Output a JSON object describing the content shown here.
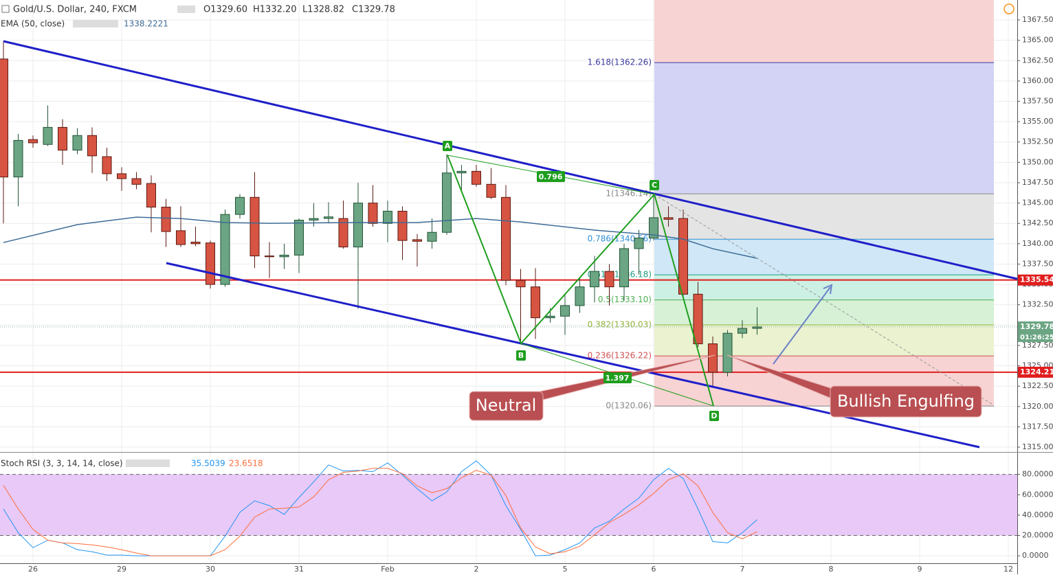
{
  "chart_data": {
    "type": "candlestick",
    "title": "Gold/U.S. Dollar, 240, FXCM",
    "ohlc_header": [
      "O1329.60",
      "H1332.20",
      "L1328.82",
      "C1329.78"
    ],
    "ema_label": "EMA (50, close)",
    "ema_value": "1338.2221",
    "candles": {
      "x": [
        0,
        1,
        2,
        3,
        4,
        5,
        6,
        7,
        8,
        9,
        10,
        11,
        12,
        13,
        14,
        15,
        16,
        17,
        18,
        19,
        20,
        21,
        22,
        23,
        24,
        25,
        26,
        27,
        28,
        29,
        30,
        31,
        32,
        33,
        34,
        35,
        36,
        37,
        38,
        39,
        40,
        41,
        42,
        43,
        44,
        45,
        46,
        47,
        48,
        49,
        50,
        51
      ],
      "open": [
        1362.7,
        1348.2,
        1352.8,
        1352.2,
        1354.3,
        1351.5,
        1353.3,
        1350.7,
        1348.6,
        1348.0,
        1347.4,
        1344.5,
        1341.6,
        1340.2,
        1340.1,
        1335.0,
        1343.6,
        1345.7,
        1338.5,
        1338.4,
        1338.6,
        1342.9,
        1343.1,
        1343.1,
        1339.6,
        1345.0,
        1342.5,
        1344.0,
        1340.5,
        1340.3,
        1341.4,
        1348.7,
        1348.9,
        1347.3,
        1345.7,
        1335.5,
        1334.7,
        1330.9,
        1331.1,
        1332.4,
        1334.7,
        1336.6,
        1334.7,
        1339.4,
        1340.7,
        1343.2,
        1343.1,
        1333.8,
        1327.7,
        1324.2,
        1329.0,
        1329.6
      ],
      "high": [
        1364.9,
        1353.5,
        1353.3,
        1357.0,
        1355.3,
        1354.2,
        1354.3,
        1351.8,
        1349.4,
        1348.8,
        1348.4,
        1345.5,
        1344.6,
        1342.1,
        1340.4,
        1344.2,
        1346.1,
        1348.8,
        1340.2,
        1340.0,
        1343.1,
        1345.0,
        1345.1,
        1345.3,
        1347.5,
        1347.2,
        1345.3,
        1344.6,
        1341.2,
        1343.1,
        1351.0,
        1349.7,
        1349.7,
        1349.3,
        1347.2,
        1336.9,
        1337.0,
        1332.1,
        1333.7,
        1335.8,
        1338.5,
        1337.5,
        1340.0,
        1341.7,
        1346.1,
        1344.6,
        1344.2,
        1335.3,
        1328.6,
        1329.4,
        1330.6,
        1332.2
      ],
      "low": [
        1342.5,
        1344.6,
        1351.8,
        1352.0,
        1349.7,
        1351.0,
        1348.7,
        1347.7,
        1346.5,
        1346.7,
        1341.4,
        1339.6,
        1339.6,
        1339.7,
        1334.5,
        1334.7,
        1343.1,
        1337.0,
        1335.8,
        1336.9,
        1336.4,
        1342.1,
        1342.5,
        1339.4,
        1332.0,
        1342.1,
        1340.2,
        1338.0,
        1337.2,
        1339.4,
        1341.1,
        1346.5,
        1347.0,
        1345.5,
        1334.9,
        1327.7,
        1328.3,
        1330.3,
        1328.8,
        1331.5,
        1332.8,
        1332.4,
        1333.0,
        1336.2,
        1340.4,
        1342.1,
        1333.2,
        1327.3,
        1322.3,
        1323.7,
        1328.4,
        1328.82
      ],
      "close": [
        1348.2,
        1352.7,
        1352.4,
        1354.3,
        1351.5,
        1353.3,
        1350.8,
        1348.6,
        1348.0,
        1347.3,
        1344.5,
        1341.5,
        1339.9,
        1340.0,
        1335.0,
        1343.6,
        1345.7,
        1338.5,
        1338.4,
        1338.6,
        1342.9,
        1343.1,
        1343.3,
        1339.6,
        1345.0,
        1342.5,
        1344.0,
        1340.4,
        1340.3,
        1341.4,
        1348.7,
        1348.9,
        1347.3,
        1345.7,
        1335.5,
        1334.7,
        1330.9,
        1331.1,
        1332.4,
        1334.7,
        1336.6,
        1334.7,
        1339.4,
        1340.7,
        1343.2,
        1343.0,
        1333.8,
        1327.7,
        1324.2,
        1329.0,
        1329.6,
        1329.78
      ],
      "up_color": "#6ba583",
      "down_color": "#d75442"
    },
    "ema": {
      "x": [
        0,
        5,
        9,
        12,
        15,
        18,
        23,
        28,
        32,
        35,
        40,
        44,
        46,
        48,
        51
      ],
      "values": [
        1340.15,
        1342.35,
        1343.27,
        1343.1,
        1342.6,
        1342.51,
        1342.6,
        1342.6,
        1343.1,
        1342.68,
        1341.67,
        1341.08,
        1340.57,
        1339.39,
        1338.21
      ],
      "color": "#3d6b96"
    },
    "xlim": [
      -0.2326,
      68.605
    ],
    "xticks": [
      {
        "value": 2,
        "label": "26"
      },
      {
        "value": 8,
        "label": "29"
      },
      {
        "value": 14,
        "label": "30"
      },
      {
        "value": 20,
        "label": "31"
      },
      {
        "value": 26,
        "label": "Feb"
      },
      {
        "value": 32,
        "label": "2"
      },
      {
        "value": 38,
        "label": "5"
      },
      {
        "value": 44,
        "label": "6"
      },
      {
        "value": 50,
        "label": "7"
      },
      {
        "value": 56,
        "label": "8"
      },
      {
        "value": 62,
        "label": "9"
      },
      {
        "value": 68,
        "label": "12"
      }
    ],
    "ylim": [
      1314.41,
      1369.95
    ],
    "yticks": [
      {
        "value": 1315,
        "label": "1315.00"
      },
      {
        "value": 1317.5,
        "label": "1317.50"
      },
      {
        "value": 1320,
        "label": "1320.00"
      },
      {
        "value": 1322.5,
        "label": "1322.50"
      },
      {
        "value": 1325,
        "label": "1325.00"
      },
      {
        "value": 1327.5,
        "label": "1327.50"
      },
      {
        "value": 1330,
        "label": "1330.00"
      },
      {
        "value": 1332.5,
        "label": "1332.50"
      },
      {
        "value": 1335,
        "label": "1335.00"
      },
      {
        "value": 1337.5,
        "label": "1337.50"
      },
      {
        "value": 1340,
        "label": "1340.00"
      },
      {
        "value": 1342.5,
        "label": "1342.50"
      },
      {
        "value": 1345,
        "label": "1345.00"
      },
      {
        "value": 1347.5,
        "label": "1347.50"
      },
      {
        "value": 1350,
        "label": "1350.00"
      },
      {
        "value": 1352.5,
        "label": "1352.50"
      },
      {
        "value": 1355,
        "label": "1355.00"
      },
      {
        "value": 1357.5,
        "label": "1357.50"
      },
      {
        "value": 1360,
        "label": "1360.00"
      },
      {
        "value": 1362.5,
        "label": "1362.50"
      },
      {
        "value": 1365,
        "label": "1365.00"
      },
      {
        "value": 1367.5,
        "label": "1367.50"
      }
    ],
    "grid": true,
    "hlines": [
      {
        "value": 1335.54,
        "color": "#e01e1e"
      },
      {
        "value": 1324.21,
        "color": "#e01e1e"
      }
    ],
    "last_price": 1329.78,
    "last_color": "#6ba583",
    "countdown": "01:26:25",
    "fib": {
      "top_fill": "#f7d3d3",
      "levels": [
        {
          "label": "0(1320.06)",
          "value": 1320.06,
          "color": "#888888"
        },
        {
          "label": "0.236(1326.22)",
          "value": 1326.22,
          "color": "#d0504f",
          "fill": "#f7d3d3"
        },
        {
          "label": "0.382(1330.03)",
          "value": 1330.03,
          "color": "#8fb33a",
          "fill": "#eaf2cf"
        },
        {
          "label": "0.5(1333.10)",
          "value": 1333.1,
          "color": "#4caf50",
          "fill": "#d6f1d6"
        },
        {
          "label": "0.618(1336.18)",
          "value": 1336.18,
          "color": "#1a9c80",
          "fill": "#cdf0e4"
        },
        {
          "label": "0.786(1340.56)",
          "value": 1340.56,
          "color": "#2f8fd6",
          "fill": "#cfe7f6"
        },
        {
          "label": "1(1346.14)",
          "value": 1346.14,
          "color": "#888888",
          "fill": "#e4e4e4"
        },
        {
          "label": "1.618(1362.26)",
          "value": 1362.26,
          "color": "#3a3aa0",
          "fill": "#d3d3f6"
        }
      ]
    },
    "points": [
      "A",
      "B",
      "C",
      "D"
    ],
    "ratios": [
      "0.796",
      "1.397"
    ],
    "annotations": [
      "Neutral",
      "Bullish Engulfing"
    ],
    "stoch": {
      "label": "Stoch RSI (3, 3, 14, 14, close)",
      "series": [
        {
          "name": "35.5039",
          "color": "#2196f3",
          "values": [
            46,
            22.7,
            8,
            15.3,
            12.7,
            6,
            4,
            0.7,
            0.7,
            0,
            0,
            0,
            0,
            0,
            0,
            19.3,
            42.7,
            54,
            49.3,
            40.7,
            57.3,
            72.7,
            89.3,
            83.3,
            84,
            82.7,
            91.3,
            79.3,
            66,
            54,
            62.7,
            82.7,
            93.3,
            79.3,
            49.3,
            26,
            0,
            0.7,
            6,
            12.7,
            27.3,
            34,
            46,
            56.7,
            74.7,
            86,
            76,
            46,
            14,
            12.7,
            22.7,
            35.5039
          ]
        },
        {
          "name": "23.6518",
          "color": "#ff6d3a",
          "values": [
            69.3,
            46,
            26,
            15.3,
            12.7,
            12,
            10.7,
            8.7,
            6,
            2.7,
            0,
            0,
            0,
            0,
            0,
            6,
            19.3,
            38,
            46,
            46.7,
            48,
            58,
            74.7,
            82,
            83.3,
            86,
            86,
            80.7,
            68.7,
            62,
            66,
            76.7,
            84,
            79.3,
            59.3,
            27.3,
            8.7,
            2,
            4,
            9.3,
            20.7,
            32.7,
            40.7,
            50,
            61.3,
            74.7,
            80.7,
            68.7,
            42.7,
            22.7,
            16.7,
            23.6518
          ]
        }
      ],
      "ylim": [
        -7.33,
        100.67
      ],
      "yticks": [
        {
          "value": 0,
          "label": "0.0000"
        },
        {
          "value": 20,
          "label": "20.0000"
        },
        {
          "value": 40,
          "label": "40.0000"
        },
        {
          "value": 60,
          "label": "60.0000"
        },
        {
          "value": 80,
          "label": "80.0000"
        }
      ],
      "band": [
        20,
        80
      ],
      "band_color": "#e8c9f7"
    }
  }
}
